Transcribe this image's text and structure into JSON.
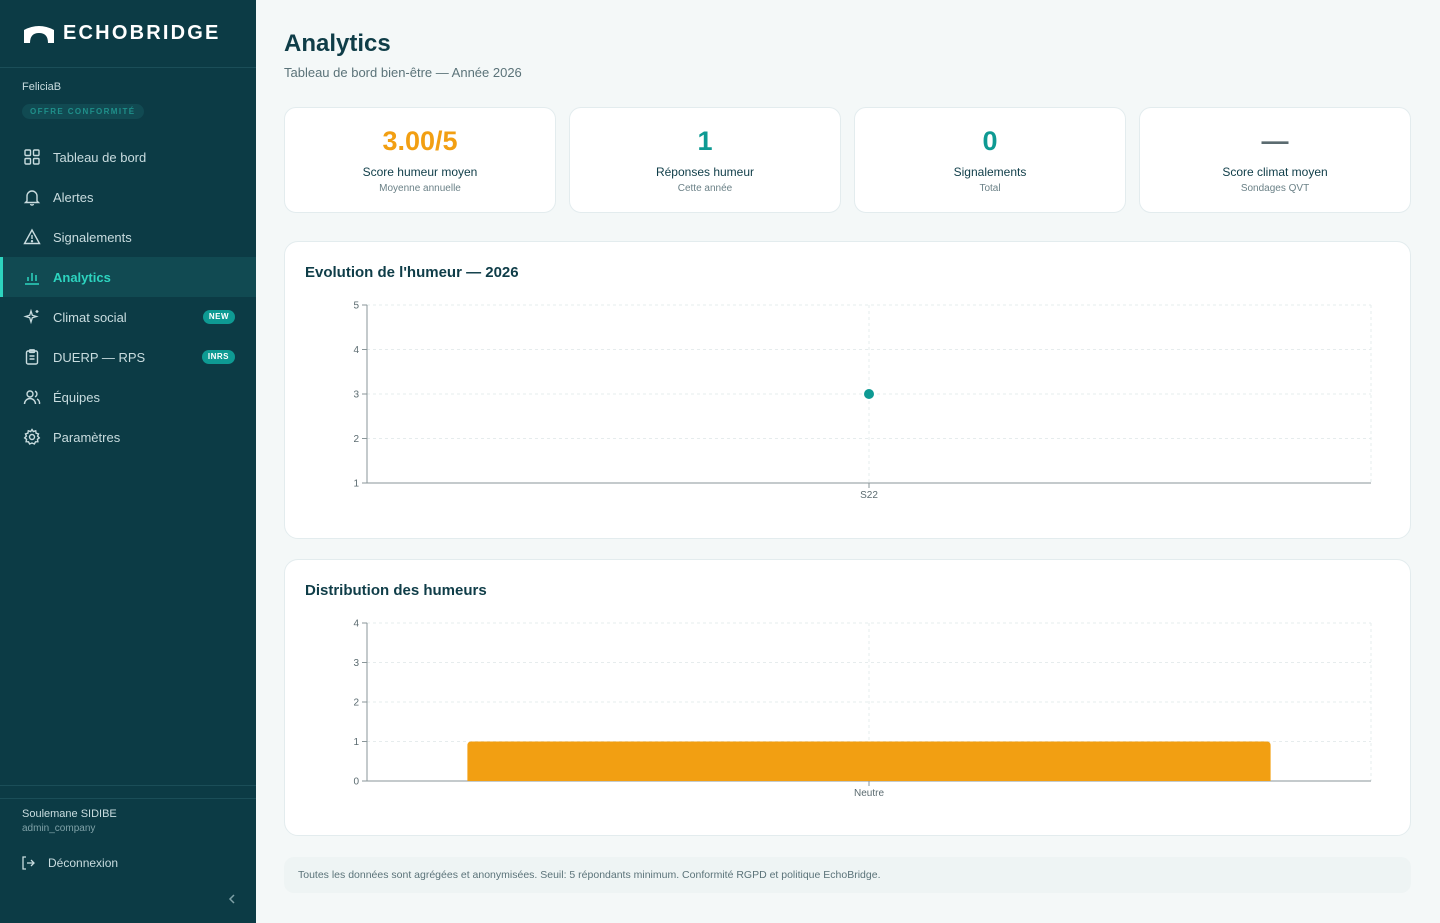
{
  "app": {
    "name": "ECHOBRIDGE"
  },
  "colors": {
    "sidebar_bg": "#0c3b45",
    "accent_teal": "#0e9a93",
    "accent_orange": "#f29f12",
    "active_text": "#2dd4bf"
  },
  "user": {
    "username": "FeliciaB",
    "plan": "OFFRE CONFORMITÉ"
  },
  "nav": [
    {
      "label": "Tableau de bord",
      "icon": "grid-icon",
      "active": false,
      "badge": ""
    },
    {
      "label": "Alertes",
      "icon": "bell-icon",
      "active": false,
      "badge": ""
    },
    {
      "label": "Signalements",
      "icon": "warning-icon",
      "active": false,
      "badge": ""
    },
    {
      "label": "Analytics",
      "icon": "bar-chart-icon",
      "active": true,
      "badge": ""
    },
    {
      "label": "Climat social",
      "icon": "sparkle-icon",
      "active": false,
      "badge": "NEW"
    },
    {
      "label": "DUERP — RPS",
      "icon": "clipboard-icon",
      "active": false,
      "badge": "INRS"
    },
    {
      "label": "Équipes",
      "icon": "users-icon",
      "active": false,
      "badge": ""
    },
    {
      "label": "Paramètres",
      "icon": "gear-icon",
      "active": false,
      "badge": ""
    }
  ],
  "footer": {
    "name": "Soulemane SIDIBE",
    "role": "admin_company",
    "logout": "Déconnexion"
  },
  "page": {
    "title": "Analytics",
    "subtitle": "Tableau de bord bien-être — Année 2026"
  },
  "kpis": [
    {
      "value": "3.00/5",
      "label": "Score humeur moyen",
      "sub": "Moyenne annuelle",
      "color": "#f29f12"
    },
    {
      "value": "1",
      "label": "Réponses humeur",
      "sub": "Cette année",
      "color": "#0e9a93"
    },
    {
      "value": "0",
      "label": "Signalements",
      "sub": "Total",
      "color": "#0e9a93"
    },
    {
      "value": "—",
      "label": "Score climat moyen",
      "sub": "Sondages QVT",
      "color": "#5b6b70"
    }
  ],
  "chart_data": [
    {
      "type": "line",
      "title": "Evolution de l'humeur — 2026",
      "categories": [
        "S22"
      ],
      "series": [
        {
          "values": [
            3
          ]
        }
      ],
      "ylim": [
        1,
        5
      ],
      "yticks": [
        1,
        2,
        3,
        4,
        5
      ],
      "grid": true,
      "color": "#0e9a93"
    },
    {
      "type": "bar",
      "title": "Distribution des humeurs",
      "categories": [
        "Neutre"
      ],
      "values": [
        1
      ],
      "ylim": [
        0,
        4
      ],
      "yticks": [
        0,
        1,
        2,
        3,
        4
      ],
      "grid": true,
      "color": "#f29f12"
    }
  ],
  "note": "Toutes les données sont agrégées et anonymisées. Seuil: 5 répondants minimum. Conformité RGPD et politique EchoBridge."
}
